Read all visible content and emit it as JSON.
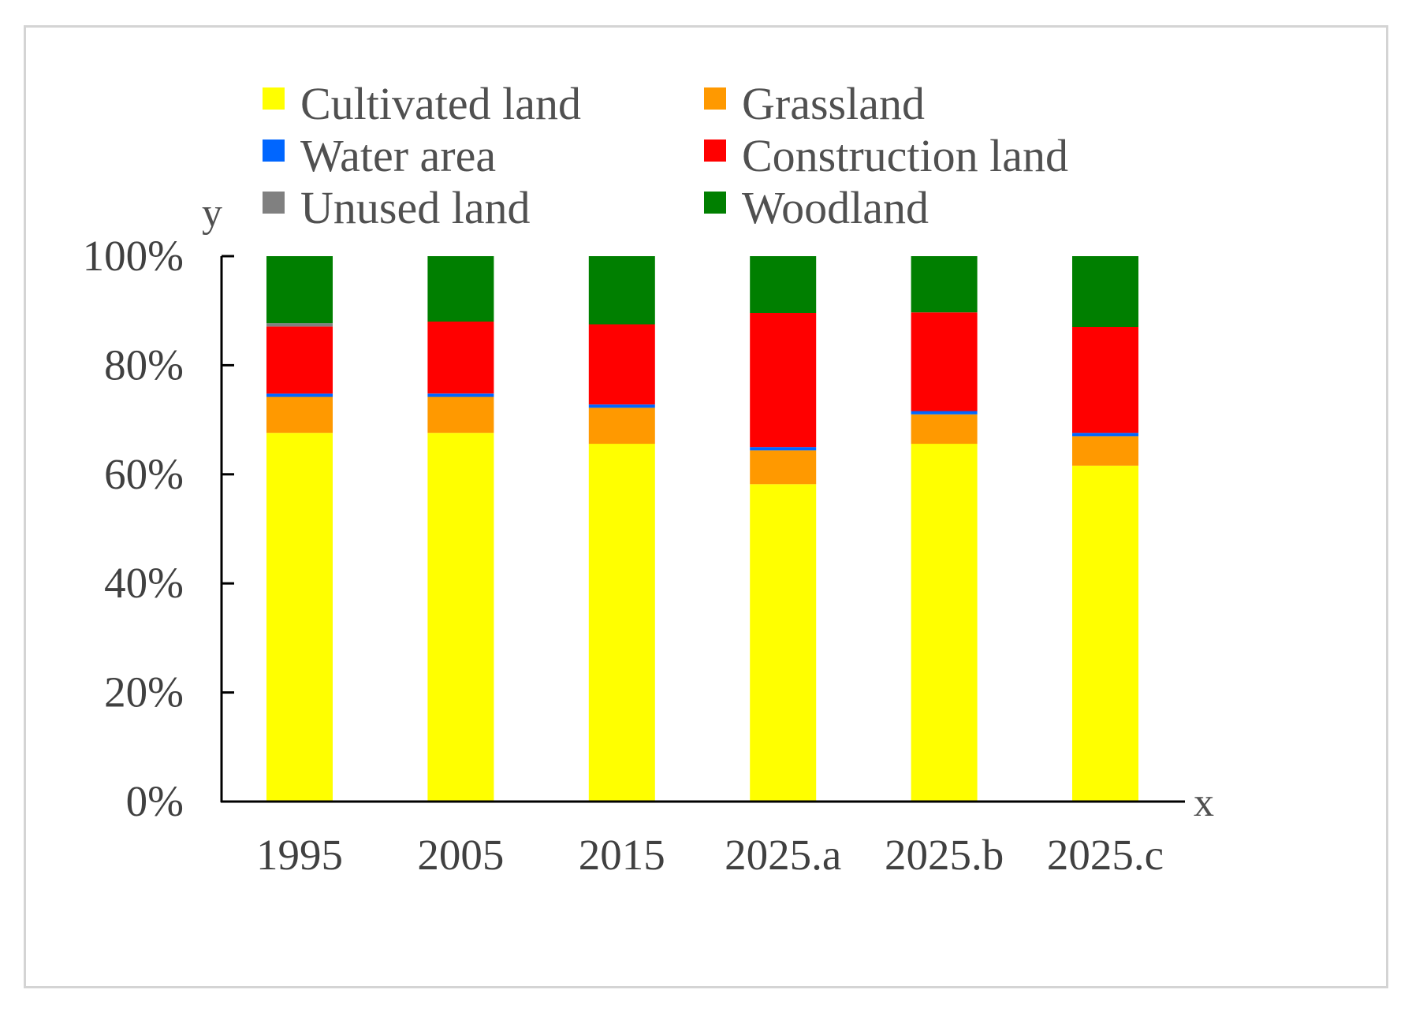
{
  "chart_data": {
    "type": "bar",
    "stacked": true,
    "title": "",
    "xlabel": "x",
    "ylabel": "y",
    "ylim": [
      0,
      100
    ],
    "yticks": [
      "0%",
      "20%",
      "40%",
      "60%",
      "80%",
      "100%"
    ],
    "yticks_values": [
      0,
      20,
      40,
      60,
      80,
      100
    ],
    "categories": [
      "1995",
      "2005",
      "2015",
      "2025.a",
      "2025.b",
      "2025.c"
    ],
    "series": [
      {
        "name": "Cultivated land",
        "color": "#FFFF00",
        "values": [
          67.6,
          67.6,
          65.6,
          58.2,
          65.6,
          61.6
        ]
      },
      {
        "name": "Grassland",
        "color": "#FF9900",
        "values": [
          6.6,
          6.6,
          6.6,
          6.2,
          5.4,
          5.4
        ]
      },
      {
        "name": "Water area",
        "color": "#0066FF",
        "values": [
          0.6,
          0.6,
          0.6,
          0.6,
          0.6,
          0.6
        ]
      },
      {
        "name": "Construction land",
        "color": "#FF0000",
        "values": [
          12.3,
          13.2,
          14.7,
          24.6,
          18.1,
          19.4
        ]
      },
      {
        "name": "Unused land",
        "color": "#808080",
        "values": [
          0.6,
          0.0,
          0.0,
          0.0,
          0.0,
          0.0
        ]
      },
      {
        "name": "Woodland",
        "color": "#007F00",
        "values": [
          12.3,
          12.0,
          12.5,
          10.4,
          10.3,
          13.0
        ]
      }
    ],
    "legend": {
      "placement": "top",
      "columns": 2,
      "order": [
        "Cultivated land",
        "Grassland",
        "Water area",
        "Construction land",
        "Unused land",
        "Woodland"
      ]
    }
  }
}
